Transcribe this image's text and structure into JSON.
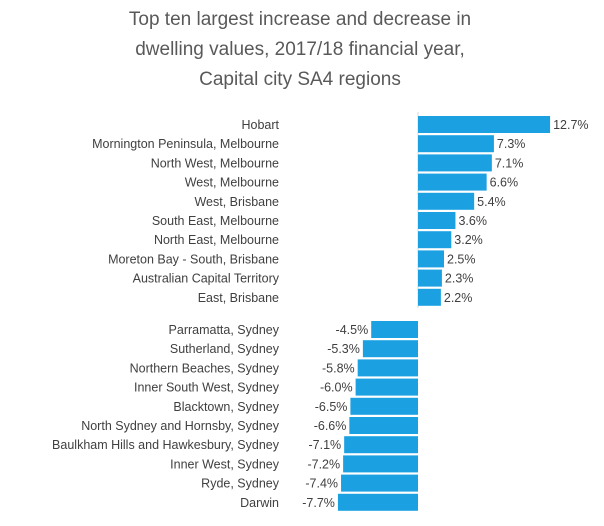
{
  "chart_data": {
    "type": "bar",
    "orientation": "horizontal",
    "title": [
      "Top ten largest increase and decrease in",
      "dwelling values, 2017/18 financial year,",
      "Capital city SA4 regions"
    ],
    "bar_color": "#1ba1e2",
    "categories": [
      "Hobart",
      "Mornington Peninsula, Melbourne",
      "North West, Melbourne",
      "West, Melbourne",
      "West, Brisbane",
      "South East, Melbourne",
      "North East, Melbourne",
      "Moreton Bay - South, Brisbane",
      "Australian Capital Territory",
      "East, Brisbane",
      "Parramatta, Sydney",
      "Sutherland, Sydney",
      "Northern Beaches, Sydney",
      "Inner South West, Sydney",
      "Blacktown, Sydney",
      "North Sydney and Hornsby, Sydney",
      "Baulkham Hills and Hawkesbury, Sydney",
      "Inner West, Sydney",
      "Ryde, Sydney",
      "Darwin"
    ],
    "values": [
      12.7,
      7.3,
      7.1,
      6.6,
      5.4,
      3.6,
      3.2,
      2.5,
      2.3,
      2.2,
      -4.5,
      -5.3,
      -5.8,
      -6.0,
      -6.5,
      -6.6,
      -7.1,
      -7.2,
      -7.4,
      -7.7
    ],
    "value_labels": [
      "12.7%",
      "7.3%",
      "7.1%",
      "6.6%",
      "5.4%",
      "3.6%",
      "3.2%",
      "2.5%",
      "2.3%",
      "2.2%",
      "-4.5%",
      "-5.3%",
      "-5.8%",
      "-6.0%",
      "-6.5%",
      "-6.6%",
      "-7.1%",
      "-7.2%",
      "-7.4%",
      "-7.7%"
    ],
    "groups": [
      {
        "name": "increase",
        "start": 0,
        "count": 10
      },
      {
        "name": "decrease",
        "start": 10,
        "count": 10
      }
    ],
    "xlim": [
      -8,
      13
    ],
    "grid": false,
    "legend": "none",
    "xlabel": "",
    "ylabel": ""
  }
}
